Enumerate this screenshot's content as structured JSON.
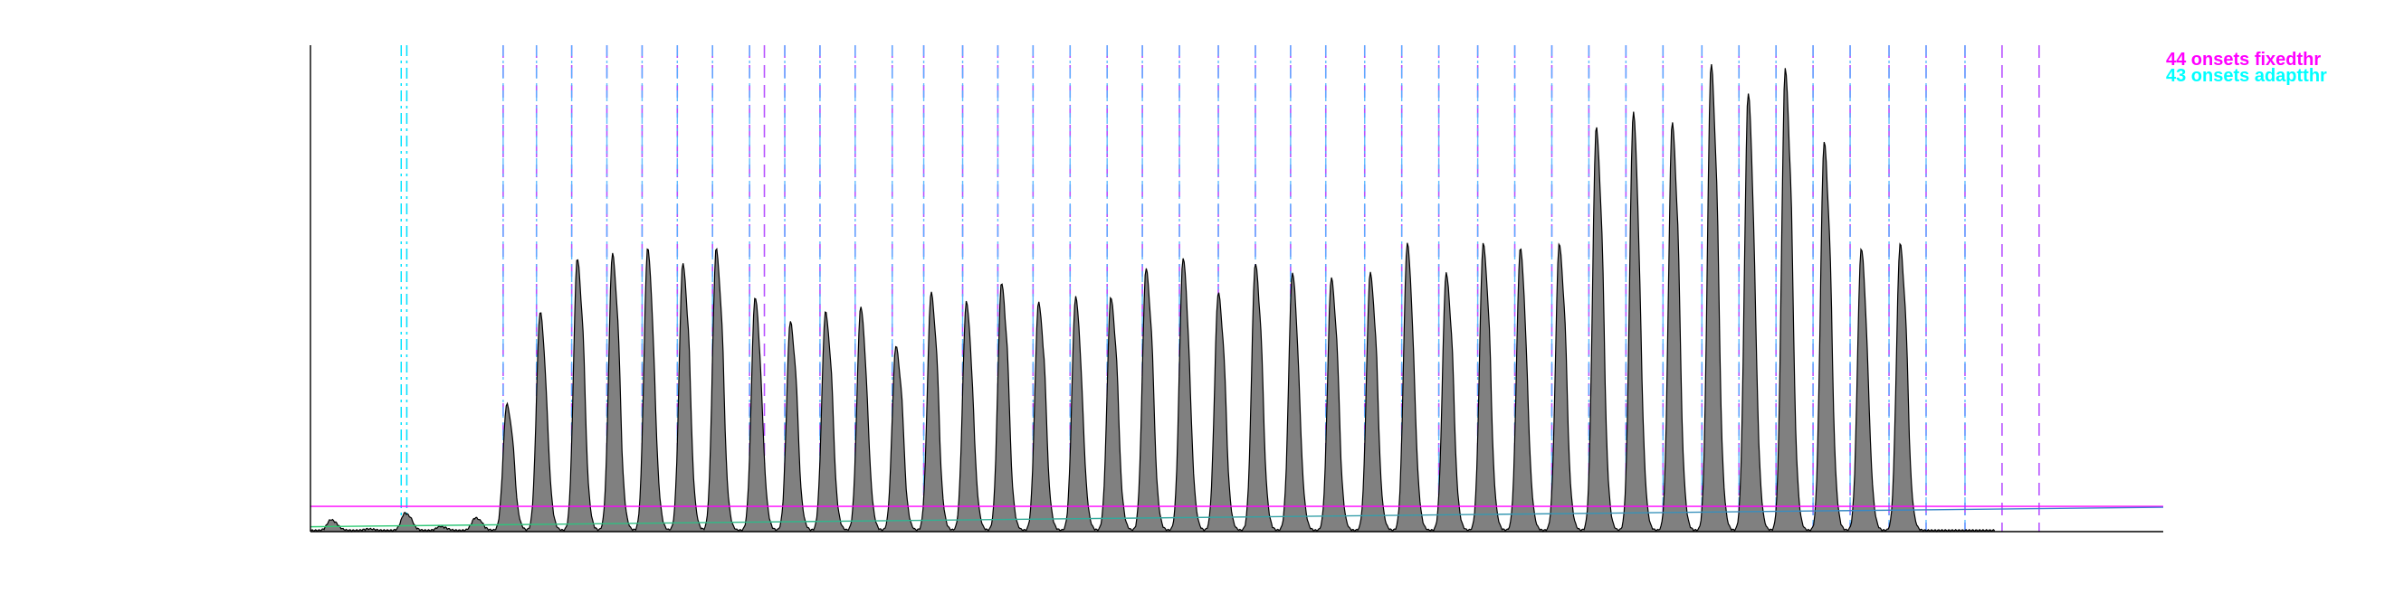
{
  "chart_data": {
    "type": "area",
    "title": "",
    "xlabel": "",
    "ylabel": "",
    "xlim": [
      0,
      1000
    ],
    "ylim": [
      0,
      1
    ],
    "grid": false,
    "legend_position": "top-right",
    "legend": [
      {
        "label": "44 onsets fixedthr",
        "color": "#ff00ff"
      },
      {
        "label": "43 onsets adaptthr",
        "color": "#00ffff"
      }
    ],
    "fixed_threshold": {
      "value": 0.052,
      "color": "#ff00ff"
    },
    "adaptive_threshold": {
      "start": 0.01,
      "end": 0.05,
      "color": "#2ecc71",
      "color_end": "#3a7bd5"
    },
    "signal": {
      "fill": "#808080",
      "stroke": "#000000",
      "x_end": 909
    },
    "peaks": [
      [
        11,
        0.022
      ],
      [
        31,
        0.003
      ],
      [
        51,
        0.036
      ],
      [
        70,
        0.008
      ],
      [
        89,
        0.026
      ],
      [
        106,
        0.26
      ],
      [
        124,
        0.45
      ],
      [
        144,
        0.56
      ],
      [
        163,
        0.57
      ],
      [
        182,
        0.58
      ],
      [
        201,
        0.55
      ],
      [
        219,
        0.58
      ],
      [
        240,
        0.48
      ],
      [
        259,
        0.43
      ],
      [
        278,
        0.45
      ],
      [
        297,
        0.46
      ],
      [
        316,
        0.38
      ],
      [
        335,
        0.49
      ],
      [
        354,
        0.47
      ],
      [
        373,
        0.51
      ],
      [
        393,
        0.47
      ],
      [
        413,
        0.48
      ],
      [
        432,
        0.48
      ],
      [
        451,
        0.54
      ],
      [
        471,
        0.56
      ],
      [
        490,
        0.49
      ],
      [
        510,
        0.55
      ],
      [
        530,
        0.53
      ],
      [
        551,
        0.52
      ],
      [
        572,
        0.53
      ],
      [
        592,
        0.59
      ],
      [
        613,
        0.53
      ],
      [
        633,
        0.59
      ],
      [
        653,
        0.58
      ],
      [
        674,
        0.59
      ],
      [
        694,
        0.83
      ],
      [
        714,
        0.86
      ],
      [
        735,
        0.84
      ],
      [
        756,
        0.96
      ],
      [
        776,
        0.9
      ],
      [
        796,
        0.95
      ],
      [
        817,
        0.8
      ],
      [
        837,
        0.58
      ],
      [
        858,
        0.59
      ]
    ],
    "onsets_fixedthr": [
      104,
      122,
      141,
      160,
      179,
      198,
      217,
      237,
      245,
      256,
      275,
      294,
      314,
      331,
      352,
      371,
      390,
      410,
      430,
      449,
      469,
      490,
      510,
      529,
      548,
      569,
      589,
      609,
      630,
      650,
      670,
      690,
      710,
      730,
      751,
      771,
      791,
      811,
      831,
      852,
      872,
      893,
      913,
      933
    ],
    "onsets_adaptthr": [
      49,
      52,
      104,
      122,
      141,
      160,
      179,
      198,
      217,
      237,
      256,
      275,
      294,
      314,
      331,
      352,
      371,
      390,
      410,
      430,
      449,
      469,
      490,
      510,
      529,
      548,
      569,
      589,
      609,
      630,
      650,
      670,
      690,
      710,
      730,
      751,
      771,
      791,
      811,
      831,
      852,
      872,
      893
    ]
  }
}
